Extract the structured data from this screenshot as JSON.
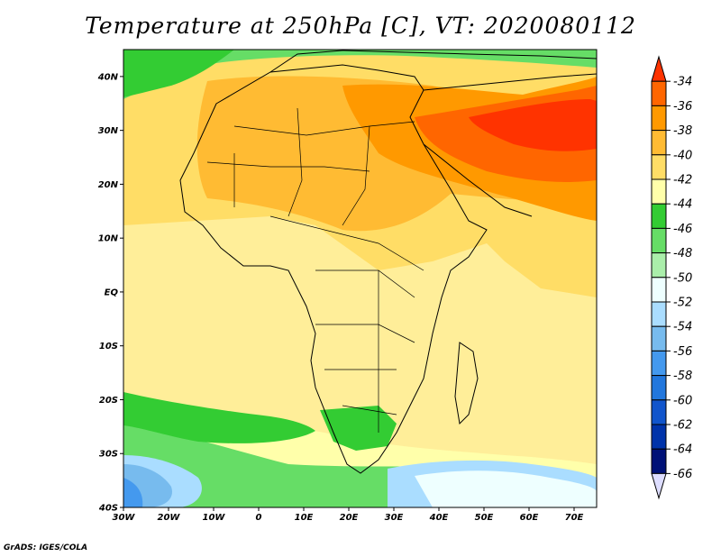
{
  "title": "Temperature at 250hPa [C], VT: 2020080112",
  "credit": "GrADS: IGES/COLA",
  "map": {
    "lat_labels": [
      "40N",
      "30N",
      "20N",
      "10N",
      "EQ",
      "10S",
      "20S",
      "30S",
      "40S"
    ],
    "lon_labels": [
      "30W",
      "20W",
      "10W",
      "0",
      "10E",
      "20E",
      "30E",
      "40E",
      "50E",
      "60E",
      "70E"
    ],
    "lat_range": [
      -40,
      45
    ],
    "lon_range": [
      -30,
      75
    ]
  },
  "colorbar": {
    "labels": [
      "-34",
      "-36",
      "-38",
      "-40",
      "-42",
      "-44",
      "-46",
      "-48",
      "-50",
      "-52",
      "-54",
      "-56",
      "-58",
      "-60",
      "-62",
      "-64",
      "-66"
    ],
    "colors": [
      "#ff3300",
      "#ff6600",
      "#ff9900",
      "#ffbb33",
      "#ffdd66",
      "#ffffaa",
      "#33cc33",
      "#66dd66",
      "#aaeeaa",
      "#eeffff",
      "#aaddff",
      "#77bbee",
      "#4499ee",
      "#2277dd",
      "#1155cc",
      "#0033aa",
      "#001177",
      "#ddddff"
    ]
  }
}
